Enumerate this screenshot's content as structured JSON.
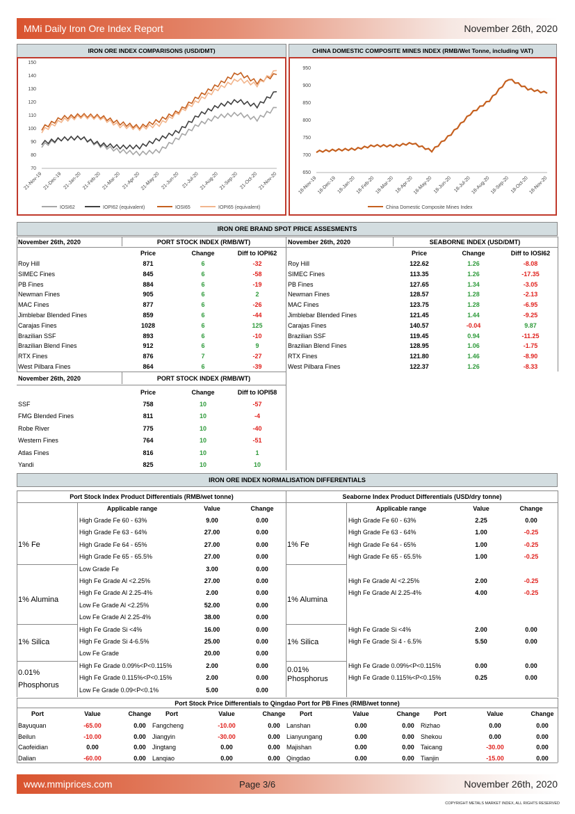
{
  "header": {
    "title": "MMi Daily Iron Ore Index Report",
    "date": "November 26th, 2020"
  },
  "footer": {
    "site": "www.mmiprices.com",
    "page": "Page 3/6",
    "date": "November 26th, 2020",
    "copyright": "COPYRIGHT METALS MARKET INDEX, ALL RIGHTS RESERVED"
  },
  "chart_data": [
    {
      "type": "line",
      "title": "IRON ORE INDEX COMPARISONS (USD/DMT)",
      "x": [
        "21-Nov-19",
        "21-Dec-19",
        "21-Jan-20",
        "21-Feb-20",
        "21-Mar-20",
        "21-Apr-20",
        "21-May-20",
        "21-Jun-20",
        "21-Jul-20",
        "21-Aug-20",
        "21-Sep-20",
        "21-Oct-20",
        "21-Nov-20"
      ],
      "ylim": [
        70,
        150
      ],
      "yticks": [
        70,
        80,
        90,
        100,
        110,
        120,
        130,
        140,
        150
      ],
      "series": [
        {
          "name": "IOSI62",
          "color": "#a6a6a6",
          "values": [
            87,
            92,
            93,
            87,
            83,
            81,
            83,
            93,
            103,
            109,
            111,
            107,
            116
          ]
        },
        {
          "name": "IOPI62 (equivalent)",
          "color": "#404040",
          "values": [
            89,
            92,
            93,
            88,
            86,
            86,
            92,
            98,
            110,
            117,
            121,
            117,
            128
          ]
        },
        {
          "name": "IOSI65",
          "color": "#c5601f",
          "values": [
            100,
            108,
            110,
            109,
            104,
            101,
            106,
            113,
            124,
            133,
            142,
            135,
            141
          ]
        },
        {
          "name": "IOPI65 (equivalent)",
          "color": "#f2b58c",
          "values": [
            98,
            106,
            109,
            108,
            102,
            100,
            103,
            112,
            121,
            130,
            137,
            133,
            144
          ]
        }
      ]
    },
    {
      "type": "line",
      "title": "CHINA DOMESTIC COMPOSITE MINES INDEX (RMB/Wet Tonne, including VAT)",
      "x": [
        "18-Nov-19",
        "18-Dec-19",
        "18-Jan-20",
        "18-Feb-20",
        "18-Mar-20",
        "18-Apr-20",
        "18-May-20",
        "18-Jun-20",
        "18-Jul-20",
        "18-Aug-20",
        "18-Sep-20",
        "18-Oct-20",
        "18-Nov-20"
      ],
      "ylim": [
        650,
        950
      ],
      "yticks": [
        650,
        700,
        750,
        800,
        850,
        900,
        950
      ],
      "series": [
        {
          "name": "China Domestic Composite Mines Index",
          "color": "#c5601f",
          "values": [
            710,
            714,
            717,
            727,
            726,
            734,
            712,
            760,
            818,
            857,
            919,
            890,
            878
          ]
        }
      ]
    }
  ],
  "brand": {
    "title": "IRON ORE BRAND SPOT PRICE ASSESMENTS",
    "date": "November 26th, 2020",
    "port_title": "PORT STOCK INDEX (RMB/WT)",
    "sea_title": "SEABORNE INDEX (USD/DMT)",
    "col_price": "Price",
    "col_change": "Change",
    "col_diff62": "Diff to IOPI62",
    "col_diffs62": "Diff to IOSI62",
    "rows": [
      [
        "Roy Hill",
        "871",
        "6",
        "-32",
        "122.62",
        "1.26",
        "-8.08"
      ],
      [
        "SIMEC Fines",
        "845",
        "6",
        "-58",
        "113.35",
        "1.26",
        "-17.35"
      ],
      [
        "PB Fines",
        "884",
        "6",
        "-19",
        "127.65",
        "1.34",
        "-3.05"
      ],
      [
        "Newman Fines",
        "905",
        "6",
        "2",
        "128.57",
        "1.28",
        "-2.13"
      ],
      [
        "MAC Fines",
        "877",
        "6",
        "-26",
        "123.75",
        "1.28",
        "-6.95"
      ],
      [
        "Jimblebar Blended Fines",
        "859",
        "6",
        "-44",
        "121.45",
        "1.44",
        "-9.25"
      ],
      [
        "Carajas Fines",
        "1028",
        "6",
        "125",
        "140.57",
        "-0.04",
        "9.87"
      ],
      [
        "Brazilian SSF",
        "893",
        "6",
        "-10",
        "119.45",
        "0.94",
        "-11.25"
      ],
      [
        "Brazilian Blend Fines",
        "912",
        "6",
        "9",
        "128.95",
        "1.06",
        "-1.75"
      ],
      [
        "RTX Fines",
        "876",
        "7",
        "-27",
        "121.80",
        "1.46",
        "-8.90"
      ],
      [
        "West Pilbara Fines",
        "864",
        "6",
        "-39",
        "122.37",
        "1.26",
        "-8.33"
      ]
    ],
    "rmb_title": "PORT STOCK INDEX (RMB/WT)",
    "col_diff58": "Diff to IOPI58",
    "rows2": [
      [
        "SSF",
        "758",
        "10",
        "-57"
      ],
      [
        "FMG Blended Fines",
        "811",
        "10",
        "-4"
      ],
      [
        "Robe River",
        "775",
        "10",
        "-40"
      ],
      [
        "Western Fines",
        "764",
        "10",
        "-51"
      ],
      [
        "Atlas Fines",
        "816",
        "10",
        "1"
      ],
      [
        "Yandi",
        "825",
        "10",
        "10"
      ]
    ]
  },
  "norm": {
    "title": "IRON ORE INDEX NORMALISATION DIFFERENTIALS",
    "left_title": "Port Stock Index Product Differentials (RMB/wet tonne)",
    "right_title": "Seaborne Index Product Differentials (USD/dry tonne)",
    "col_range": "Applicable range",
    "col_value": "Value",
    "col_change": "Change",
    "left_rows": [
      [
        "High Grade Fe 60 - 63%",
        "9.00",
        "0.00"
      ],
      [
        "High Grade Fe 63 - 64%",
        "27.00",
        "0.00"
      ],
      [
        "High Grade Fe 64 - 65%",
        "27.00",
        "0.00"
      ],
      [
        "High Grade Fe 65 - 65.5%",
        "27.00",
        "0.00"
      ],
      [
        "Low Grade Fe",
        "3.00",
        "0.00"
      ],
      [
        "High Fe Grade Al <2.25%",
        "27.00",
        "0.00"
      ],
      [
        "High Fe Grade Al 2.25-4%",
        "2.00",
        "0.00"
      ],
      [
        "Low Fe Grade Al <2.25%",
        "52.00",
        "0.00"
      ],
      [
        "Low Fe Grade Al 2.25-4%",
        "38.00",
        "0.00"
      ],
      [
        "High Fe Grade Si <4%",
        "16.00",
        "0.00"
      ],
      [
        "High Fe Grade Si 4-6.5%",
        "25.00",
        "0.00"
      ],
      [
        "Low Fe Grade",
        "20.00",
        "0.00"
      ],
      [
        "High Fe Grade 0.09%<P<0.115%",
        "2.00",
        "0.00"
      ],
      [
        "High Fe Grade 0.115%<P<0.15%",
        "2.00",
        "0.00"
      ],
      [
        "Low Fe Grade 0.09<P<0.1%",
        "5.00",
        "0.00"
      ]
    ],
    "right_rows": [
      [
        "High Grade Fe 60 - 63%",
        "2.25",
        "0.00"
      ],
      [
        "High Grade Fe 63 - 64%",
        "1.00",
        "-0.25"
      ],
      [
        "High Grade Fe 64 - 65%",
        "1.00",
        "-0.25"
      ],
      [
        "High Grade Fe 65 - 65.5%",
        "1.00",
        "-0.25"
      ],
      [
        "",
        "",
        ""
      ],
      [
        "High Fe Grade Al <2.25%",
        "2.00",
        "-0.25"
      ],
      [
        "High Fe Grade Al 2.25-4%",
        "4.00",
        "-0.25"
      ],
      [
        "",
        "",
        ""
      ],
      [
        "",
        "",
        ""
      ],
      [
        "High Fe Grade Si <4%",
        "2.00",
        "0.00"
      ],
      [
        "High Fe Grade Si 4 - 6.5%",
        "5.50",
        "0.00"
      ],
      [
        "",
        "",
        ""
      ],
      [
        "High Fe Grade 0.09%<P<0.115%",
        "0.00",
        "0.00"
      ],
      [
        "High Fe Grade 0.115%<P<0.15%",
        "0.25",
        "0.00"
      ],
      [
        "",
        "",
        ""
      ]
    ],
    "groups": [
      "1% Fe",
      "1% Alumina",
      "1% Silica",
      "0.01%",
      "Phosphorus"
    ]
  },
  "qingdao": {
    "title": "Port Stock Price Differentials to Qingdao Port for PB Fines (RMB/wet tonne)",
    "col_port": "Port",
    "col_value": "Value",
    "col_change": "Change",
    "rows": [
      [
        [
          "Bayuquan",
          "-65.00",
          "0.00"
        ],
        [
          "Fangcheng",
          "-10.00",
          "0.00"
        ],
        [
          "Lanshan",
          "0.00",
          "0.00"
        ],
        [
          "Rizhao",
          "0.00",
          "0.00"
        ]
      ],
      [
        [
          "Beilun",
          "-10.00",
          "0.00"
        ],
        [
          "Jiangyin",
          "-30.00",
          "0.00"
        ],
        [
          "Lianyungang",
          "0.00",
          "0.00"
        ],
        [
          "Shekou",
          "0.00",
          "0.00"
        ]
      ],
      [
        [
          "Caofeidian",
          "0.00",
          "0.00"
        ],
        [
          "Jingtang",
          "0.00",
          "0.00"
        ],
        [
          "Majishan",
          "0.00",
          "0.00"
        ],
        [
          "Taicang",
          "-30.00",
          "0.00"
        ]
      ],
      [
        [
          "Dalian",
          "-60.00",
          "0.00"
        ],
        [
          "Lanqiao",
          "0.00",
          "0.00"
        ],
        [
          "Qingdao",
          "0.00",
          "0.00"
        ],
        [
          "Tianjin",
          "-15.00",
          "0.00"
        ]
      ]
    ]
  }
}
